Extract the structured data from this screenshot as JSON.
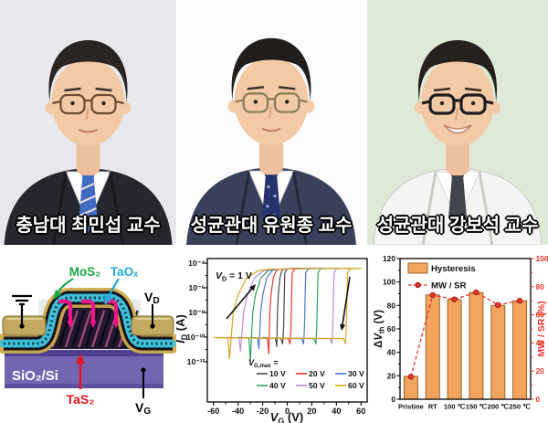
{
  "page": {
    "background": "#ffffff"
  },
  "professors": [
    {
      "caption": "충남대 최민섭 교수",
      "outfit": "suit",
      "tie_pattern": "stripes",
      "expression": "neutral",
      "colors": {
        "bg": "#e8e8ec",
        "jacket": "#26262e",
        "shirt": "#fdfdfd",
        "tie": "#3f6cc0",
        "accent": "#e8d8dc",
        "hair": "#2a2522",
        "glasses": "#6b4a35"
      }
    },
    {
      "caption": "성균관대 유원종 교수",
      "outfit": "suit",
      "tie_pattern": "dots",
      "expression": "neutral",
      "colors": {
        "bg": "#fbfbfd",
        "jacket": "#39415a",
        "shirt": "#fdfdfd",
        "tie": "#26336e",
        "accent": "#9fb0dc",
        "hair": "#201d1a",
        "glasses": "#8a7a58"
      }
    },
    {
      "caption": "성균관대 강보석 교수",
      "outfit": "labcoat",
      "tie_pattern": "plain",
      "expression": "smile",
      "colors": {
        "bg": "#dfe9d8",
        "jacket": "#f4f5f3",
        "shirt": "#ffffff",
        "tie": "#41454d",
        "accent": "#6d727c",
        "hair": "#27211d",
        "glasses": "#1d1d1f"
      }
    }
  ],
  "schematic": {
    "labels": {
      "mos2": "MoS₂",
      "taox": "TaOₓ",
      "tas2": "TaS₂",
      "substrate": "SiO₂/Si",
      "vd_main": "V",
      "vd_sub": "D",
      "vg_main": "V",
      "vg_sub": "G"
    },
    "colors": {
      "mos2_label": "#18a845",
      "taox_label": "#21aadf",
      "tas2_label": "#e8131c",
      "substrate": "#7365b2",
      "electrode": "#c2a95f",
      "current_arrow": "#ee1587"
    }
  },
  "chart_data": [
    {
      "type": "line",
      "description": "Transfer-curve hysteresis loops of the MoS2/TaOx/TaS2 memory transistor for different gate sweep ranges",
      "annotation": {
        "main": "V",
        "sub": "D",
        "rest": " = 1 V"
      },
      "xlabel": {
        "main": "V",
        "sub": "G",
        "rest": " (V)"
      },
      "ylabel": {
        "main": "I",
        "sub": "D",
        "rest": " (A)"
      },
      "legend_title": {
        "main": "V",
        "sub": "G,max",
        "rest": " ="
      },
      "xlim": [
        -65,
        65
      ],
      "xticks": [
        -60,
        -40,
        -20,
        0,
        20,
        40,
        60
      ],
      "ytick_exps": [
        -4,
        -6,
        -8,
        -10,
        -12
      ],
      "ytick_labels": [
        "10⁻⁴",
        "10⁻⁶",
        "10⁻⁸",
        "10⁻¹⁰",
        "10⁻¹²"
      ],
      "baseline_exp": -10,
      "saturation_exp": -4.42,
      "legend_position": "bottom-right",
      "series": [
        {
          "name": "10 V",
          "color": "#474747",
          "vmax": 10,
          "v_on_dip": -8.5,
          "dip_exp": -10.75,
          "v_saturate": -3,
          "v_off_drop": -2
        },
        {
          "name": "20 V",
          "color": "#e23b2e",
          "vmax": 20,
          "v_on_dip": -15,
          "dip_exp": -11.35,
          "v_saturate": -7,
          "v_off_drop": 4
        },
        {
          "name": "30 V",
          "color": "#4a7ad4",
          "vmax": 30,
          "v_on_dip": -23,
          "dip_exp": -10.95,
          "v_saturate": -9,
          "v_off_drop": 15
        },
        {
          "name": "40 V",
          "color": "#2fa35f",
          "vmax": 40,
          "v_on_dip": -30,
          "dip_exp": -11.95,
          "v_saturate": -11,
          "v_off_drop": 25
        },
        {
          "name": "50 V",
          "color": "#bc8ade",
          "vmax": 50,
          "v_on_dip": -38,
          "dip_exp": -11.15,
          "v_saturate": -13,
          "v_off_drop": 38
        },
        {
          "name": "60 V",
          "color": "#d7a51e",
          "vmax": 60,
          "v_on_dip": -47,
          "dip_exp": -11.75,
          "v_saturate": -16,
          "v_off_drop": 49
        }
      ]
    },
    {
      "type": "bar",
      "categories": [
        "Pristine",
        "RT",
        "100 ℃",
        "150 ℃",
        "200 ℃",
        "250 ℃"
      ],
      "bar_series": {
        "name": "Hysteresis",
        "values": [
          19.5,
          89,
          85,
          91,
          80,
          84
        ],
        "color": "#f2a35e",
        "border": "#9c6424"
      },
      "line_series": {
        "name": "MW / SR",
        "values": [
          16,
          74,
          71,
          76,
          67,
          70
        ],
        "color": "#e8342a"
      },
      "ylabel_left": {
        "pre": "Δ",
        "main": "V",
        "sub": "th",
        "rest": " (V)"
      },
      "ylabel_right": "MW / SR (%)",
      "ylim_left": [
        0,
        120
      ],
      "yticks_left": [
        0,
        20,
        40,
        60,
        80,
        100,
        120
      ],
      "ylim_right": [
        0,
        100
      ],
      "yticks_right": [
        0,
        20,
        40,
        60,
        80,
        100
      ],
      "legend_position": "top-left"
    }
  ]
}
